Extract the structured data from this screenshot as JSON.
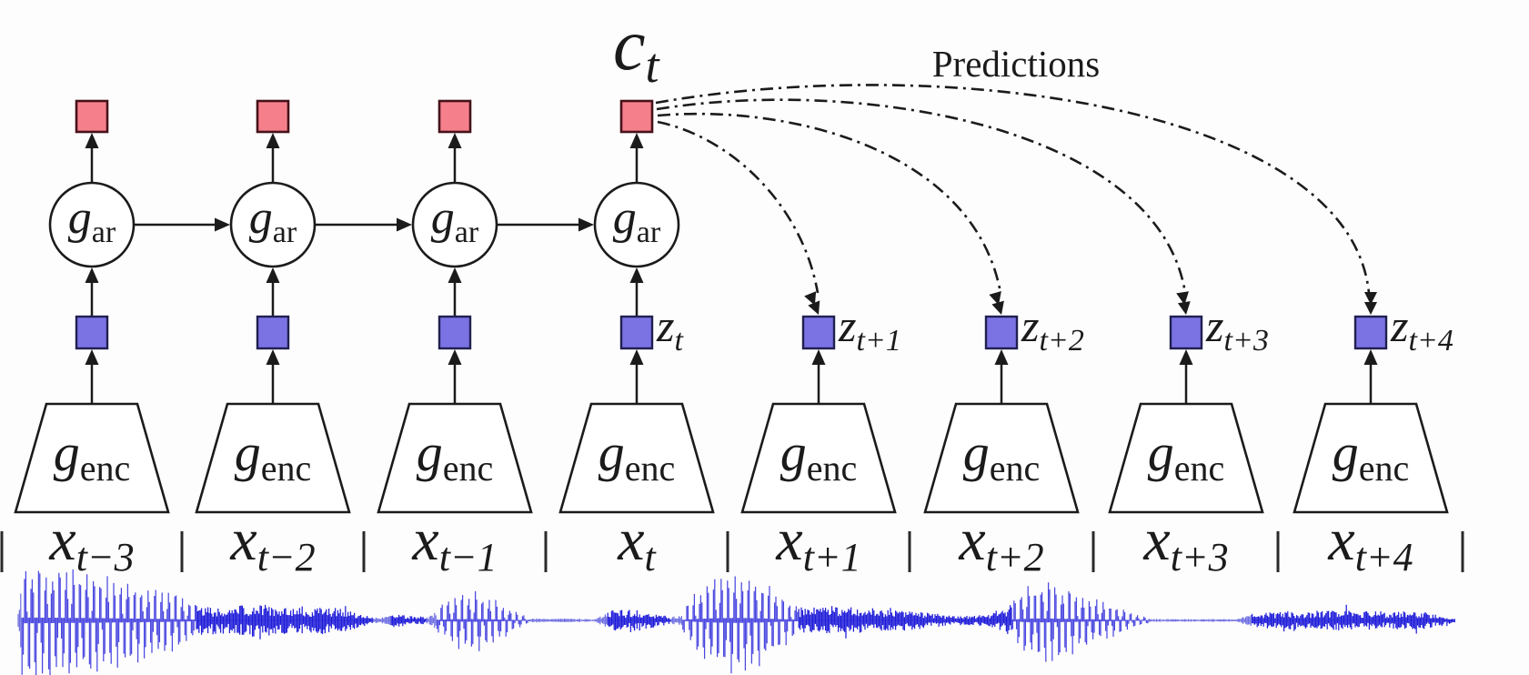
{
  "figure": "contrastive-predictive-coding-architecture",
  "labels": {
    "predictions": "Predictions",
    "context_output": {
      "main": "c",
      "sub": "t"
    },
    "ar_node": {
      "main": "g",
      "sub": "ar"
    },
    "enc_node": {
      "main": "g",
      "sub": "enc"
    },
    "input_main": "x",
    "latent_main": "z"
  },
  "columns": [
    {
      "input_sub": "t−3",
      "has_ar": true,
      "z_sub": null,
      "predicted": false
    },
    {
      "input_sub": "t−2",
      "has_ar": true,
      "z_sub": null,
      "predicted": false
    },
    {
      "input_sub": "t−1",
      "has_ar": true,
      "z_sub": null,
      "predicted": false
    },
    {
      "input_sub": "t",
      "has_ar": true,
      "z_sub": "t",
      "predicted": false
    },
    {
      "input_sub": "t+1",
      "has_ar": false,
      "z_sub": "t+1",
      "predicted": true
    },
    {
      "input_sub": "t+2",
      "has_ar": false,
      "z_sub": "t+2",
      "predicted": true
    },
    {
      "input_sub": "t+3",
      "has_ar": false,
      "z_sub": "t+3",
      "predicted": true
    },
    {
      "input_sub": "t+4",
      "has_ar": false,
      "z_sub": "t+4",
      "predicted": true
    }
  ],
  "colors": {
    "background": "#fdfdfe",
    "context_square_fill": "#f5808c",
    "context_square_stroke": "#46121a",
    "latent_square_fill": "#7b72e4",
    "latent_square_stroke": "#20204f",
    "node_fill": "#ffffff",
    "line": "#1b1b1b",
    "text": "#1b1b1b",
    "wave_vowel": "#4b48e0",
    "wave_noise": "#1f1cd9",
    "wave_quiet": "#6f6fe2",
    "wave_baseline": "#8b8ae8"
  },
  "waveform": {
    "description": "speech waveform under input segments",
    "envelope": [
      [
        18,
        1,
        "q"
      ],
      [
        24,
        52,
        "v"
      ],
      [
        60,
        50,
        "v"
      ],
      [
        110,
        42,
        "v"
      ],
      [
        150,
        34,
        "v"
      ],
      [
        186,
        26,
        "v"
      ],
      [
        215,
        16,
        "n"
      ],
      [
        252,
        15,
        "n"
      ],
      [
        285,
        19,
        "n"
      ],
      [
        322,
        14,
        "n"
      ],
      [
        360,
        16,
        "n"
      ],
      [
        396,
        8,
        "n"
      ],
      [
        410,
        3,
        "q"
      ],
      [
        430,
        8,
        "n"
      ],
      [
        455,
        5,
        "n"
      ],
      [
        468,
        4,
        "q"
      ],
      [
        480,
        12,
        "v"
      ],
      [
        500,
        22,
        "v"
      ],
      [
        522,
        26,
        "v"
      ],
      [
        546,
        18,
        "v"
      ],
      [
        566,
        9,
        "v"
      ],
      [
        580,
        3,
        "q"
      ],
      [
        654,
        2,
        "q"
      ],
      [
        668,
        11,
        "n"
      ],
      [
        700,
        12,
        "n"
      ],
      [
        722,
        7,
        "n"
      ],
      [
        738,
        4,
        "q"
      ],
      [
        750,
        10,
        "v"
      ],
      [
        766,
        28,
        "v"
      ],
      [
        786,
        40,
        "v"
      ],
      [
        812,
        46,
        "v"
      ],
      [
        836,
        38,
        "v"
      ],
      [
        858,
        24,
        "v"
      ],
      [
        878,
        15,
        "n"
      ],
      [
        900,
        14,
        "n"
      ],
      [
        940,
        15,
        "n"
      ],
      [
        985,
        12,
        "n"
      ],
      [
        1020,
        9,
        "n"
      ],
      [
        1048,
        5,
        "n"
      ],
      [
        1076,
        6,
        "n"
      ],
      [
        1098,
        9,
        "n"
      ],
      [
        1112,
        18,
        "v"
      ],
      [
        1132,
        34,
        "v"
      ],
      [
        1152,
        36,
        "v"
      ],
      [
        1176,
        28,
        "v"
      ],
      [
        1200,
        20,
        "v"
      ],
      [
        1226,
        13,
        "v"
      ],
      [
        1248,
        6,
        "v"
      ],
      [
        1262,
        3,
        "q"
      ],
      [
        1275,
        2,
        "q"
      ],
      [
        1358,
        2,
        "q"
      ],
      [
        1376,
        8,
        "n"
      ],
      [
        1420,
        10,
        "n"
      ],
      [
        1470,
        11,
        "n"
      ],
      [
        1520,
        10,
        "n"
      ],
      [
        1562,
        10,
        "n"
      ],
      [
        1586,
        6,
        "n"
      ],
      [
        1600,
        2,
        "q"
      ]
    ]
  }
}
